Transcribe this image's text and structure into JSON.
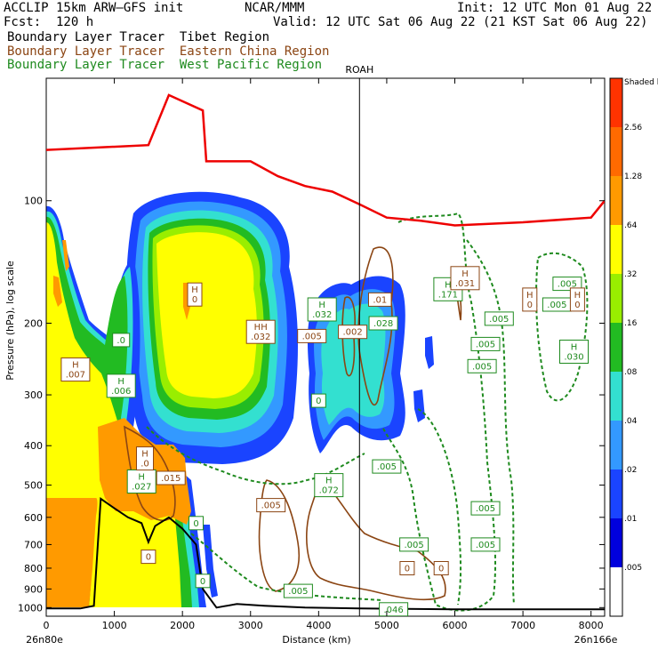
{
  "header": {
    "model": "ACCLIP 15km ARW–GFS init",
    "org": "NCAR/MMM",
    "init": "Init: 12 UTC Mon 01 Aug 22",
    "fcst": "Fcst:  120 h",
    "valid": "Valid: 12 UTC Sat 06 Aug 22 (21 KST Sat 06 Aug 22)"
  },
  "legend": [
    {
      "name": "Boundary Layer Tracer  Tibet Region",
      "color": "#000000"
    },
    {
      "name": "Boundary Layer Tracer  Eastern China Region",
      "color": "#8b4513"
    },
    {
      "name": "Boundary Layer Tracer  West Pacific Region",
      "color": "#1e8a1e"
    }
  ],
  "chart_data": {
    "type": "cross-section",
    "xlabel": "Distance (km)",
    "ylabel": "Pressure (hPa), log scale",
    "xlim": [
      0,
      8200
    ],
    "ylim": [
      1050,
      50
    ],
    "x_ticks": [
      "0",
      "1000",
      "2000",
      "3000",
      "4000",
      "5000",
      "6000",
      "7000",
      "8000"
    ],
    "x_tick_values": [
      0,
      1000,
      2000,
      3000,
      4000,
      5000,
      6000,
      7000,
      8000
    ],
    "y_ticks": [
      "100",
      "200",
      "300",
      "400",
      "500",
      "600",
      "700",
      "800",
      "900",
      "1000"
    ],
    "y_tick_values": [
      100,
      200,
      300,
      400,
      500,
      600,
      700,
      800,
      900,
      1000
    ],
    "start_label": "26n80e",
    "end_label": "26n166e",
    "marker": {
      "label": "ROAH",
      "x": 4600
    },
    "colorbar": {
      "labels": [
        "Shaded levels",
        "2.56",
        "1.28",
        ".64",
        ".32",
        ".16",
        ".08",
        ".04",
        ".02",
        ".01",
        ".005"
      ],
      "colors": [
        "#ff3300",
        "#ff6a00",
        "#ff9a00",
        "#ffff00",
        "#99ee00",
        "#22bb22",
        "#33e0d0",
        "#3399ff",
        "#1a44ff",
        "#0000dd",
        "#ffffff"
      ]
    },
    "shading_colors": {
      "blue": "#1a44ff",
      "lightblue": "#3399ff",
      "cyan": "#33e0d0",
      "green": "#22bb22",
      "lightgreen": "#99ee00",
      "yellow": "#ffff00",
      "orange": "#ff9a00"
    },
    "tropopause_line": {
      "color": "#ee0000",
      "points": [
        [
          0,
          75
        ],
        [
          1500,
          73
        ],
        [
          1800,
          55
        ],
        [
          2300,
          60
        ],
        [
          2350,
          80
        ],
        [
          3000,
          80
        ],
        [
          3400,
          87
        ],
        [
          3800,
          92
        ],
        [
          4200,
          95
        ],
        [
          4600,
          102
        ],
        [
          5000,
          110
        ],
        [
          5500,
          112
        ],
        [
          6000,
          115
        ],
        [
          7000,
          113
        ],
        [
          8000,
          110
        ],
        [
          8200,
          100
        ]
      ]
    },
    "terrain_line": {
      "color": "#000000",
      "points": [
        [
          0,
          1005
        ],
        [
          500,
          1005
        ],
        [
          700,
          990
        ],
        [
          800,
          540
        ],
        [
          1000,
          570
        ],
        [
          1200,
          600
        ],
        [
          1400,
          620
        ],
        [
          1500,
          690
        ],
        [
          1600,
          630
        ],
        [
          1800,
          600
        ],
        [
          2000,
          640
        ],
        [
          2200,
          700
        ],
        [
          2300,
          900
        ],
        [
          2500,
          1000
        ],
        [
          2800,
          980
        ],
        [
          3200,
          990
        ],
        [
          3800,
          1000
        ],
        [
          4600,
          1005
        ],
        [
          6000,
          1010
        ],
        [
          8200,
          1010
        ]
      ]
    },
    "label_boxes": [
      {
        "text": "H\n.007",
        "x": 430,
        "p": 260,
        "color": "#8b4513"
      },
      {
        "text": ".0",
        "x": 1100,
        "p": 220,
        "color": "#1e8a1e"
      },
      {
        "text": "H\n.006",
        "x": 1100,
        "p": 285,
        "color": "#1e8a1e"
      },
      {
        "text": "H\n0",
        "x": 2180,
        "p": 170,
        "color": "#8b4513"
      },
      {
        "text": "HH\n.032",
        "x": 3150,
        "p": 210,
        "color": "#8b4513"
      },
      {
        "text": "H\n.032",
        "x": 4050,
        "p": 185,
        "color": "#1e8a1e"
      },
      {
        "text": ".005",
        "x": 3900,
        "p": 215,
        "color": "#8b4513"
      },
      {
        "text": ".002",
        "x": 4500,
        "p": 210,
        "color": "#8b4513"
      },
      {
        "text": ".01",
        "x": 4900,
        "p": 175,
        "color": "#8b4513"
      },
      {
        "text": ".028",
        "x": 4950,
        "p": 200,
        "color": "#1e8a1e"
      },
      {
        "text": "H\n.171",
        "x": 5900,
        "p": 165,
        "color": "#1e8a1e"
      },
      {
        "text": "H\n.031",
        "x": 6150,
        "p": 155,
        "color": "#8b4513"
      },
      {
        "text": ".005",
        "x": 6650,
        "p": 195,
        "color": "#1e8a1e"
      },
      {
        "text": ".005",
        "x": 6450,
        "p": 225,
        "color": "#1e8a1e"
      },
      {
        "text": ".005",
        "x": 6400,
        "p": 255,
        "color": "#1e8a1e"
      },
      {
        "text": "H\n0",
        "x": 7100,
        "p": 175,
        "color": "#8b4513"
      },
      {
        "text": ".005",
        "x": 7500,
        "p": 180,
        "color": "#1e8a1e"
      },
      {
        "text": ".005",
        "x": 7650,
        "p": 160,
        "color": "#1e8a1e"
      },
      {
        "text": "H\n0",
        "x": 7800,
        "p": 175,
        "color": "#8b4513"
      },
      {
        "text": "H\n.030",
        "x": 7750,
        "p": 235,
        "color": "#1e8a1e"
      },
      {
        "text": "0",
        "x": 4000,
        "p": 310,
        "color": "#1e8a1e"
      },
      {
        "text": ".005",
        "x": 5000,
        "p": 450,
        "color": "#1e8a1e"
      },
      {
        "text": "H\n.072",
        "x": 4150,
        "p": 500,
        "color": "#1e8a1e"
      },
      {
        "text": ".005",
        "x": 3300,
        "p": 560,
        "color": "#8b4513"
      },
      {
        "text": ".005",
        "x": 6450,
        "p": 570,
        "color": "#1e8a1e"
      },
      {
        "text": ".005",
        "x": 6450,
        "p": 700,
        "color": "#1e8a1e"
      },
      {
        "text": ".005",
        "x": 5400,
        "p": 700,
        "color": "#1e8a1e"
      },
      {
        "text": ".005",
        "x": 3700,
        "p": 910,
        "color": "#1e8a1e"
      },
      {
        "text": ".046",
        "x": 5100,
        "p": 1010,
        "color": "#1e8a1e"
      },
      {
        "text": "0",
        "x": 5300,
        "p": 800,
        "color": "#8b4513"
      },
      {
        "text": "0",
        "x": 5800,
        "p": 800,
        "color": "#8b4513"
      },
      {
        "text": "0",
        "x": 2300,
        "p": 860,
        "color": "#1e8a1e"
      },
      {
        "text": "0",
        "x": 2200,
        "p": 620,
        "color": "#1e8a1e"
      },
      {
        "text": "H\n.027",
        "x": 1400,
        "p": 490,
        "color": "#1e8a1e"
      },
      {
        "text": ".015",
        "x": 1830,
        "p": 480,
        "color": "#8b4513"
      },
      {
        "text": "0",
        "x": 1500,
        "p": 750,
        "color": "#8b4513"
      },
      {
        "text": "H\n.0",
        "x": 1450,
        "p": 430,
        "color": "#8b4513"
      }
    ]
  }
}
